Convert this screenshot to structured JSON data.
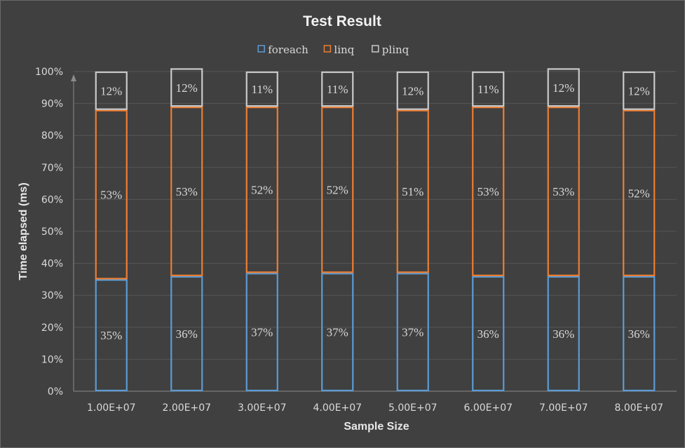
{
  "chart_data": {
    "type": "bar",
    "stacked": true,
    "normalized": true,
    "title": "Test Result",
    "xlabel": "Sample Size",
    "ylabel": "Time elapsed (ms)",
    "categories": [
      "1.00E+07",
      "2.00E+07",
      "3.00E+07",
      "4.00E+07",
      "5.00E+07",
      "6.00E+07",
      "7.00E+07",
      "8.00E+07"
    ],
    "series": [
      {
        "name": "foreach",
        "color": "#5b9bd5",
        "values": [
          35,
          36,
          37,
          37,
          37,
          36,
          36,
          36
        ],
        "labels": [
          "35%",
          "36%",
          "37%",
          "37%",
          "37%",
          "36%",
          "36%",
          "36%"
        ]
      },
      {
        "name": "linq",
        "color": "#ed7d31",
        "values": [
          53,
          53,
          52,
          52,
          51,
          53,
          53,
          52
        ],
        "labels": [
          "53%",
          "53%",
          "52%",
          "52%",
          "51%",
          "53%",
          "53%",
          "52%"
        ]
      },
      {
        "name": "plinq",
        "color": "#c9c9c9",
        "values": [
          12,
          12,
          11,
          11,
          12,
          11,
          12,
          12
        ],
        "labels": [
          "12%",
          "12%",
          "11%",
          "11%",
          "12%",
          "11%",
          "12%",
          "12%"
        ]
      }
    ],
    "ylim": [
      0,
      100
    ],
    "yticks": [
      "0%",
      "10%",
      "20%",
      "30%",
      "40%",
      "50%",
      "60%",
      "70%",
      "80%",
      "90%",
      "100%"
    ],
    "grid": true,
    "legend_position": "top"
  }
}
